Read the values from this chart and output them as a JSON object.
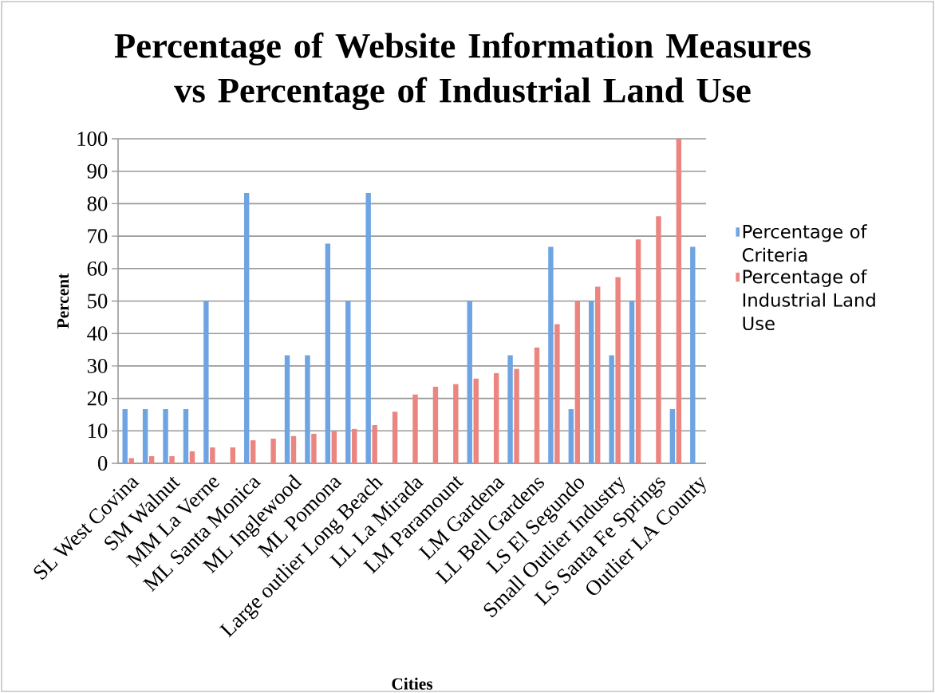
{
  "chart_data": {
    "type": "bar",
    "title": "Percentage of Website Information Measures vs Percentage of Industrial Land Use",
    "xlabel": "Cities",
    "ylabel": "Percent",
    "categories": [
      "SL West Covina",
      null,
      "SM Walnut",
      null,
      "MM La Verne",
      null,
      "ML Santa Monica",
      null,
      "ML Inglewood",
      null,
      "ML Pomona",
      null,
      "Large outlier Long Beach",
      null,
      "LL La Mirada",
      null,
      "LM Paramount",
      null,
      "LM Gardena",
      null,
      "LL Bell Gardens",
      null,
      "LS El Segundo",
      null,
      "Small Outlier Industry",
      null,
      "LS Santa Fe Springs",
      null,
      "Outlier LA County"
    ],
    "series": [
      {
        "name": "Percentage of Criteria",
        "color": "#6fa4e2",
        "values": [
          16.7,
          16.7,
          16.7,
          16.7,
          50,
          null,
          83.3,
          null,
          33.3,
          33.3,
          67.7,
          50,
          83.3,
          null,
          null,
          null,
          null,
          50,
          null,
          33.3,
          null,
          66.7,
          16.7,
          50,
          33.3,
          50,
          null,
          16.7,
          66.7
        ]
      },
      {
        "name": "Percentage of Industrial Land Use",
        "color": "#ea8580",
        "values": [
          1.6,
          2.2,
          2.2,
          3.7,
          4.9,
          4.9,
          7.1,
          7.6,
          8.4,
          9.1,
          9.8,
          10.6,
          11.8,
          15.9,
          21.2,
          23.6,
          24.4,
          26.1,
          27.8,
          29.1,
          35.7,
          42.9,
          50,
          54.4,
          57.4,
          69,
          76.1,
          100,
          null
        ]
      }
    ],
    "ylim": [
      0,
      100
    ],
    "yticks": [
      0,
      10,
      20,
      30,
      40,
      50,
      60,
      70,
      80,
      90,
      100
    ],
    "grid": "y",
    "legend": "right"
  }
}
